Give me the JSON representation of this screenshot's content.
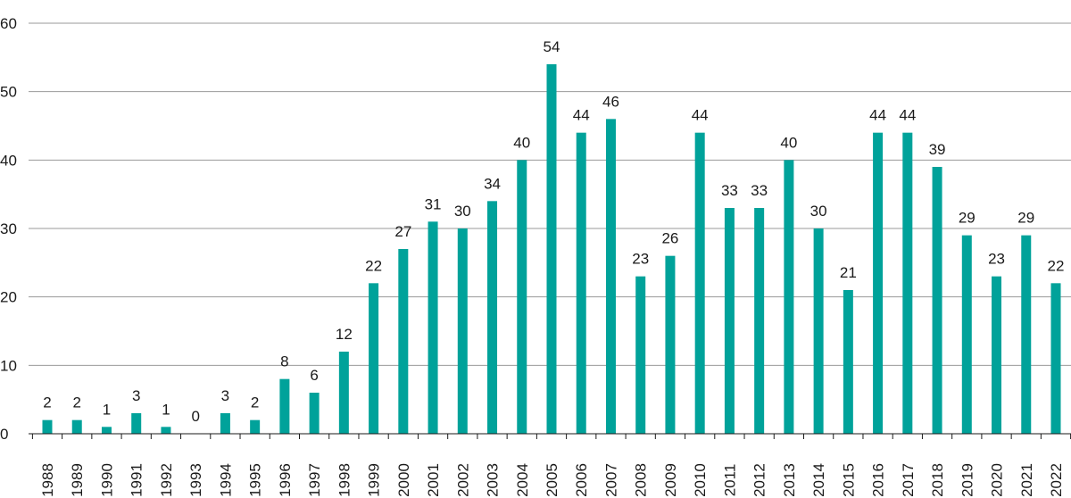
{
  "chart_data": {
    "type": "bar",
    "title": "",
    "xlabel": "",
    "ylabel": "",
    "ylim": [
      0,
      60
    ],
    "yticks": [
      0,
      10,
      20,
      30,
      40,
      50,
      60
    ],
    "grid": true,
    "bar_color": "#00a29a",
    "categories": [
      "1988",
      "1989",
      "1990",
      "1991",
      "1992",
      "1993",
      "1994",
      "1995",
      "1996",
      "1997",
      "1998",
      "1999",
      "2000",
      "2001",
      "2002",
      "2003",
      "2004",
      "2005",
      "2006",
      "2007",
      "2008",
      "2009",
      "2010",
      "2011",
      "2012",
      "2013",
      "2014",
      "2015",
      "2016",
      "2017",
      "2018",
      "2019",
      "2020",
      "2021",
      "2022"
    ],
    "values": [
      2,
      2,
      1,
      3,
      1,
      0,
      3,
      2,
      8,
      6,
      12,
      22,
      27,
      31,
      30,
      34,
      40,
      54,
      44,
      46,
      23,
      26,
      44,
      33,
      33,
      40,
      30,
      21,
      44,
      44,
      39,
      29,
      23,
      29,
      22
    ]
  }
}
